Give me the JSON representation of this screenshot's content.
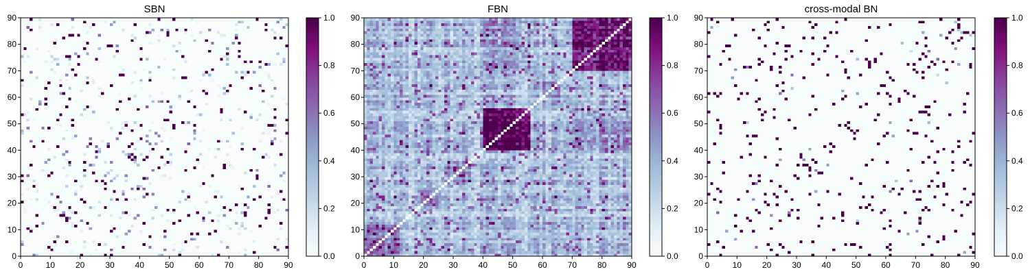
{
  "chart_data": [
    {
      "type": "heatmap",
      "title": "SBN",
      "xlabel": "",
      "ylabel": "",
      "xlim": [
        0,
        90
      ],
      "ylim": [
        0,
        90
      ],
      "xticks": [
        "0",
        "10",
        "20",
        "30",
        "40",
        "50",
        "60",
        "70",
        "80",
        "90"
      ],
      "yticks": [
        "0",
        "10",
        "20",
        "30",
        "40",
        "50",
        "60",
        "70",
        "80",
        "90"
      ],
      "colorbar": {
        "range": [
          0,
          1
        ],
        "ticks": [
          "0.0",
          "0.2",
          "0.4",
          "0.6",
          "0.8",
          "1.0"
        ],
        "colormap": "BuPu"
      },
      "matrix_size": 90,
      "pattern": "sparse symmetric; mostly ~0 with scattered strong links (~1.0) and weak links (0.2-0.5)",
      "seed": 11,
      "density": 0.05
    },
    {
      "type": "heatmap",
      "title": "FBN",
      "xlabel": "",
      "ylabel": "",
      "xlim": [
        0,
        90
      ],
      "ylim": [
        0,
        90
      ],
      "xticks": [
        "0",
        "10",
        "20",
        "30",
        "40",
        "50",
        "60",
        "70",
        "80",
        "90"
      ],
      "yticks": [
        "0",
        "10",
        "20",
        "30",
        "40",
        "50",
        "60",
        "70",
        "80",
        "90"
      ],
      "colorbar": {
        "range": [
          0,
          1
        ],
        "ticks": [
          "0.0",
          "0.2",
          "0.4",
          "0.6",
          "0.8",
          "1.0"
        ],
        "colormap": "BuPu"
      },
      "matrix_size": 90,
      "pattern": "dense symmetric functional connectivity; strong block around nodes 40-55 and 70-90; white diagonal (0)",
      "seed": 29,
      "density": 1.0
    },
    {
      "type": "heatmap",
      "title": "cross-modal BN",
      "xlabel": "",
      "ylabel": "",
      "xlim": [
        0,
        90
      ],
      "ylim": [
        0,
        90
      ],
      "xticks": [
        "0",
        "10",
        "20",
        "30",
        "40",
        "50",
        "60",
        "70",
        "80",
        "90"
      ],
      "yticks": [
        "0",
        "10",
        "20",
        "30",
        "40",
        "50",
        "60",
        "70",
        "80",
        "90"
      ],
      "colorbar": {
        "range": [
          0,
          1
        ],
        "ticks": [
          "0.0",
          "0.2",
          "0.4",
          "0.6",
          "0.8",
          "1.0"
        ],
        "colormap": "BuPu"
      },
      "matrix_size": 90,
      "pattern": "sparse symmetric; nearly binary strong links (~1.0), few weak links",
      "seed": 11,
      "density": 0.045
    }
  ],
  "colors": {
    "colormap_stops": [
      "#f7fcfd",
      "#e0ecf4",
      "#bfd3e6",
      "#9ebcda",
      "#8c96c6",
      "#8c6bb1",
      "#88419d",
      "#810f7c",
      "#4d004b"
    ]
  }
}
